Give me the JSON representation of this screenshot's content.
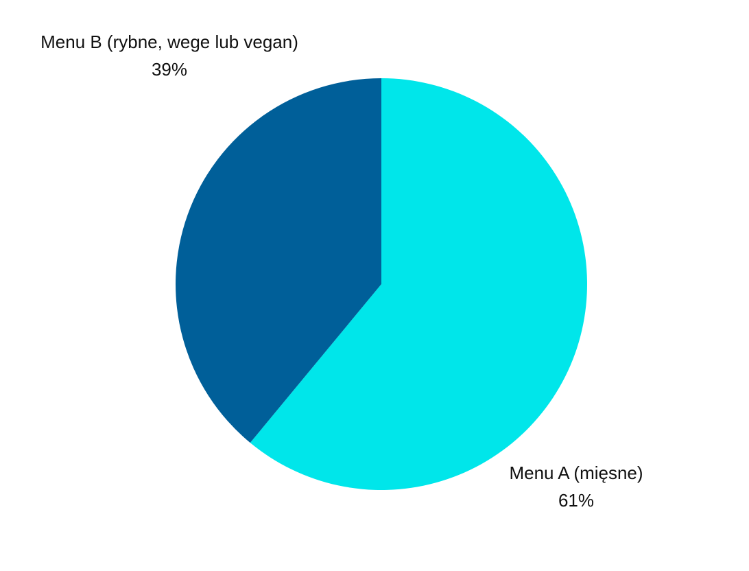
{
  "chart_data": {
    "type": "pie",
    "categories": [
      "Menu A (mięsne)",
      "Menu B (rybne, wege lub vegan)"
    ],
    "values": [
      61,
      39
    ],
    "value_labels": [
      "61%",
      "39%"
    ],
    "colors": [
      "#00e6ea",
      "#005f99"
    ]
  }
}
